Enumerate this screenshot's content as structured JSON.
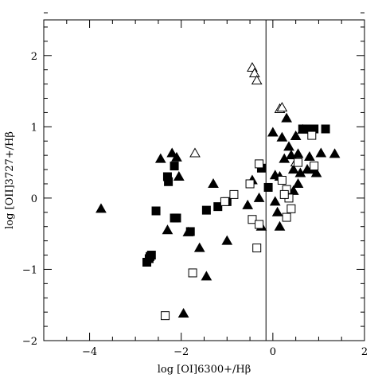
{
  "chart_data": {
    "type": "scatter",
    "title": "",
    "xlabel": "log [OI]6300+/Hβ",
    "ylabel": "log [OII]3727+/Hβ",
    "xlim": [
      -5,
      2
    ],
    "ylim": [
      -2,
      2.5
    ],
    "xticks": [
      -4,
      -2,
      0,
      2
    ],
    "xtick_labels": [
      "−4",
      "−2",
      "0",
      "2"
    ],
    "yticks": [
      -2,
      -1,
      0,
      1,
      2
    ],
    "ytick_labels": [
      "−2",
      "−1",
      "0",
      "1",
      "2"
    ],
    "vertical_line_x": -0.15,
    "grid": false,
    "series": [
      {
        "marker": "filled-triangle",
        "points": [
          [
            -3.75,
            -0.15
          ],
          [
            -2.45,
            0.55
          ],
          [
            -2.2,
            0.63
          ],
          [
            -2.1,
            0.57
          ],
          [
            -2.05,
            0.3
          ],
          [
            -2.3,
            -0.45
          ],
          [
            -1.95,
            -1.62
          ],
          [
            -1.85,
            -0.48
          ],
          [
            -1.6,
            -0.7
          ],
          [
            -1.45,
            -1.1
          ],
          [
            -1.3,
            0.2
          ],
          [
            -1.0,
            -0.6
          ],
          [
            -0.55,
            -0.1
          ],
          [
            -0.45,
            0.25
          ],
          [
            -0.3,
            0.0
          ],
          [
            -0.25,
            -0.4
          ],
          [
            0.0,
            0.92
          ],
          [
            0.05,
            -0.05
          ],
          [
            0.1,
            -0.2
          ],
          [
            0.15,
            -0.4
          ],
          [
            0.05,
            0.32
          ],
          [
            0.2,
            0.85
          ],
          [
            0.3,
            1.12
          ],
          [
            0.25,
            0.55
          ],
          [
            0.35,
            0.72
          ],
          [
            0.4,
            0.6
          ],
          [
            0.45,
            0.1
          ],
          [
            0.55,
            0.62
          ],
          [
            0.6,
            0.35
          ],
          [
            0.5,
            0.87
          ],
          [
            0.65,
            0.96
          ],
          [
            0.45,
            0.4
          ],
          [
            0.75,
            0.4
          ],
          [
            0.8,
            0.58
          ],
          [
            0.85,
            0.4
          ],
          [
            0.95,
            0.35
          ],
          [
            1.05,
            0.63
          ],
          [
            1.35,
            0.62
          ],
          [
            0.15,
            0.3
          ],
          [
            0.55,
            0.2
          ]
        ]
      },
      {
        "marker": "filled-square",
        "points": [
          [
            -2.75,
            -0.9
          ],
          [
            -2.7,
            -0.85
          ],
          [
            -2.68,
            -0.82
          ],
          [
            -2.65,
            -0.8
          ],
          [
            -2.55,
            -0.18
          ],
          [
            -2.3,
            0.3
          ],
          [
            -2.28,
            0.23
          ],
          [
            -2.15,
            0.45
          ],
          [
            -2.15,
            -0.28
          ],
          [
            -2.1,
            -0.28
          ],
          [
            -1.8,
            -0.47
          ],
          [
            -1.45,
            -0.17
          ],
          [
            -1.2,
            -0.12
          ],
          [
            -1.0,
            -0.05
          ],
          [
            -0.25,
            0.42
          ],
          [
            -0.1,
            0.15
          ],
          [
            0.65,
            0.97
          ],
          [
            0.72,
            0.97
          ],
          [
            0.9,
            0.97
          ],
          [
            1.15,
            0.97
          ]
        ]
      },
      {
        "marker": "open-triangle",
        "points": [
          [
            -0.45,
            1.83
          ],
          [
            -0.4,
            1.75
          ],
          [
            -0.35,
            1.65
          ],
          [
            0.15,
            1.25
          ],
          [
            0.2,
            1.27
          ],
          [
            -1.7,
            0.63
          ],
          [
            0.5,
            0.5
          ]
        ]
      },
      {
        "marker": "open-square",
        "points": [
          [
            -2.35,
            -1.65
          ],
          [
            -1.75,
            -1.05
          ],
          [
            -1.05,
            -0.05
          ],
          [
            -0.85,
            0.05
          ],
          [
            -0.5,
            0.2
          ],
          [
            -0.45,
            -0.3
          ],
          [
            -0.35,
            -0.7
          ],
          [
            -0.3,
            -0.37
          ],
          [
            -0.3,
            0.48
          ],
          [
            0.2,
            0.25
          ],
          [
            0.3,
            0.12
          ],
          [
            0.35,
            0.0
          ],
          [
            0.3,
            -0.27
          ],
          [
            0.4,
            -0.15
          ],
          [
            0.85,
            0.88
          ],
          [
            0.9,
            0.45
          ],
          [
            0.55,
            0.5
          ],
          [
            0.25,
            0.05
          ]
        ]
      }
    ]
  }
}
